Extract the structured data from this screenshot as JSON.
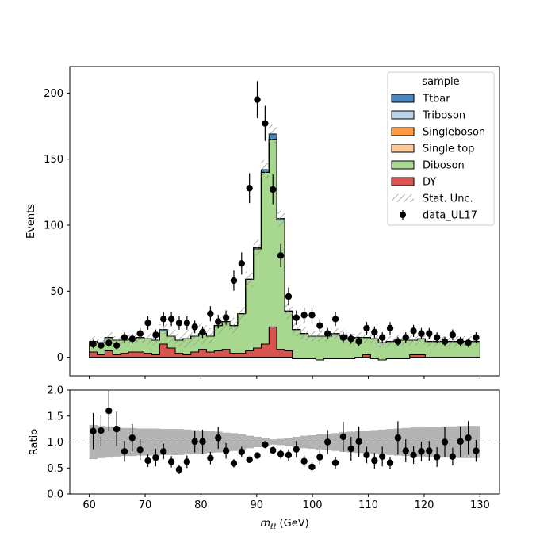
{
  "chart_data": [
    {
      "type": "area",
      "subtype": "stacked-step-histogram",
      "xlim": [
        56.5,
        133.5
      ],
      "ylim": [
        -14,
        220
      ],
      "ylabel": "Events",
      "yticks": [
        0,
        50,
        100,
        150,
        200
      ],
      "bin_edges": [
        60,
        61.4,
        62.8,
        64.2,
        65.6,
        67.0,
        68.4,
        69.8,
        71.2,
        72.6,
        74.0,
        75.4,
        76.8,
        78.2,
        79.6,
        81.0,
        82.4,
        83.8,
        85.2,
        86.6,
        88.0,
        89.4,
        90.8,
        92.2,
        93.6,
        95.0,
        96.4,
        97.8,
        99.2,
        100.6,
        102.0,
        103.4,
        104.8,
        106.2,
        107.6,
        109.0,
        110.4,
        111.8,
        113.2,
        114.6,
        116.0,
        117.4,
        118.8,
        120.2,
        121.6,
        123.0,
        124.4,
        125.8,
        127.2,
        128.6,
        130.0
      ],
      "series": [
        {
          "name": "DY",
          "color": "#d9534f",
          "values": [
            4,
            2,
            5,
            2,
            3,
            4,
            4,
            3,
            2,
            10,
            7,
            3,
            2,
            4,
            6,
            4,
            5,
            6,
            3,
            3,
            5,
            7,
            10,
            23,
            6,
            5,
            -1,
            -1,
            -1,
            -2,
            -1,
            -1,
            -1,
            -1,
            0,
            2,
            -1,
            -2,
            -1,
            -1,
            -1,
            2,
            2,
            0,
            0,
            0,
            0,
            0,
            0,
            0
          ]
        },
        {
          "name": "Diboson",
          "color": "#a8d890",
          "values": [
            8,
            9,
            10,
            11,
            10,
            10,
            11,
            11,
            11,
            10,
            9,
            10,
            12,
            12,
            12,
            12,
            19,
            21,
            21,
            30,
            54,
            75,
            130,
            142,
            98,
            30,
            22,
            19,
            17,
            18,
            17,
            18,
            17,
            15,
            15,
            13,
            15,
            13,
            13,
            14,
            14,
            11,
            12,
            12,
            12,
            12,
            12,
            12,
            12,
            12
          ]
        },
        {
          "name": "Single top",
          "color": "#ffc99a",
          "values": [
            0,
            0,
            0,
            0,
            0,
            0,
            0,
            0,
            0,
            0,
            0,
            0,
            0,
            0,
            0,
            0,
            0,
            0,
            0,
            0,
            0,
            0,
            0,
            0,
            0,
            0,
            0,
            0,
            0,
            0,
            0,
            0,
            0,
            0,
            0,
            0,
            0,
            0,
            0,
            0,
            0,
            0,
            0,
            0,
            0,
            0,
            0,
            0,
            0,
            0
          ]
        },
        {
          "name": "Singleboson",
          "color": "#ff9a40",
          "values": [
            0,
            0,
            0,
            0,
            0,
            0,
            0,
            0,
            0,
            0,
            0,
            0,
            0,
            0,
            0,
            0,
            0,
            0,
            0,
            0,
            0,
            0,
            0,
            0,
            0,
            0,
            0,
            0,
            0,
            0,
            0,
            0,
            0,
            0,
            0,
            0,
            0,
            0,
            0,
            0,
            0,
            0,
            0,
            0,
            0,
            0,
            0,
            0,
            0,
            0
          ]
        },
        {
          "name": "Triboson",
          "color": "#bcd2ea",
          "values": [
            0,
            0,
            0,
            0,
            0,
            0,
            0,
            0,
            0,
            0,
            0,
            0,
            0,
            0,
            0,
            0,
            0,
            0,
            0,
            0,
            0,
            0,
            0,
            0,
            0,
            0,
            0,
            0,
            0,
            0,
            0,
            0,
            0,
            0,
            0,
            0,
            0,
            0,
            0,
            0,
            0,
            0,
            0,
            0,
            0,
            0,
            0,
            0,
            0,
            0
          ]
        },
        {
          "name": "Ttbar",
          "color": "#4a86c0",
          "values": [
            0,
            0,
            0,
            0,
            0,
            0,
            0,
            0,
            0,
            1,
            0,
            0,
            0,
            0,
            0,
            0,
            0,
            0,
            0,
            0,
            0,
            1,
            2,
            4,
            1,
            0,
            0,
            0,
            0,
            0,
            0,
            1,
            1,
            0,
            0,
            0,
            0,
            0,
            0,
            0,
            0,
            0,
            0,
            0,
            0,
            0,
            0,
            0,
            0,
            0
          ]
        }
      ],
      "stat_unc": [
        4,
        3,
        4,
        3,
        3,
        3,
        4,
        4,
        4,
        4,
        5,
        5,
        7,
        7,
        8,
        6,
        6,
        6,
        6,
        5,
        6,
        6,
        7,
        7,
        6,
        6,
        5,
        5,
        4,
        4,
        4,
        4,
        4,
        4,
        4,
        4,
        4,
        4,
        4,
        4,
        4,
        4,
        4,
        4,
        4,
        4,
        4,
        4,
        4,
        4
      ],
      "data": {
        "name": "data_UL17",
        "x": [
          60.7,
          62.1,
          63.5,
          64.9,
          66.3,
          67.7,
          69.1,
          70.5,
          71.9,
          73.3,
          74.7,
          76.1,
          77.5,
          78.9,
          80.3,
          81.7,
          83.1,
          84.5,
          85.9,
          87.3,
          88.7,
          90.1,
          91.5,
          92.9,
          94.3,
          95.7,
          97.1,
          98.5,
          99.9,
          101.3,
          102.7,
          104.1,
          105.5,
          106.9,
          108.3,
          109.7,
          111.1,
          112.5,
          113.9,
          115.3,
          116.7,
          118.1,
          119.5,
          120.9,
          122.3,
          123.7,
          125.1,
          126.5,
          127.9,
          129.3
        ],
        "y": [
          10,
          9,
          11,
          9,
          15,
          14,
          18,
          26,
          17,
          29,
          29,
          26,
          26,
          23,
          19,
          33,
          27,
          30,
          58,
          71,
          128,
          195,
          177,
          127,
          77,
          46,
          30,
          32,
          32,
          24,
          18,
          29,
          15,
          14,
          12,
          22,
          19,
          15,
          22,
          12,
          15,
          20,
          18,
          18,
          15,
          12,
          17,
          12,
          11,
          15
        ],
        "err": [
          3.2,
          3,
          3.3,
          3,
          3.9,
          3.7,
          4.2,
          5.1,
          4.1,
          5.4,
          5.4,
          5.1,
          5.1,
          4.8,
          4.4,
          5.7,
          5.2,
          5.5,
          7.6,
          8.4,
          11.3,
          14,
          13.3,
          11.3,
          8.8,
          6.8,
          5.5,
          5.7,
          5.7,
          4.9,
          4.2,
          5.4,
          3.9,
          3.7,
          3.5,
          4.7,
          4.4,
          3.9,
          4.7,
          3.5,
          3.9,
          4.5,
          4.2,
          4.2,
          3.9,
          3.5,
          4.1,
          3.5,
          3.3,
          3.9
        ]
      },
      "legend": {
        "title": "sample",
        "position": "upper right",
        "entries": [
          "Ttbar",
          "Triboson",
          "Singleboson",
          "Single top",
          "Diboson",
          "DY",
          "Stat. Unc.",
          "data_UL17"
        ]
      },
      "grid": false
    },
    {
      "type": "scatter",
      "subtype": "ratio",
      "xlim": [
        56.5,
        133.5
      ],
      "ylim": [
        0,
        2
      ],
      "xlabel_var": "m",
      "xlabel_sub": "ℓℓ",
      "xlabel_unit": " (GeV)",
      "ylabel": "Ratio",
      "xticks": [
        60,
        70,
        80,
        90,
        100,
        110,
        120,
        130
      ],
      "yticks": [
        "0.0",
        "0.5",
        "1.0",
        "1.5",
        "2.0"
      ],
      "reference_line": 1.0,
      "band_halfwidth": [
        0.33,
        0.31,
        0.3,
        0.28,
        0.27,
        0.27,
        0.26,
        0.26,
        0.26,
        0.25,
        0.25,
        0.25,
        0.24,
        0.23,
        0.22,
        0.21,
        0.2,
        0.18,
        0.17,
        0.15,
        0.12,
        0.1,
        0.07,
        0.05,
        0.06,
        0.08,
        0.1,
        0.12,
        0.13,
        0.15,
        0.16,
        0.17,
        0.19,
        0.2,
        0.21,
        0.22,
        0.23,
        0.24,
        0.25,
        0.26,
        0.27,
        0.28,
        0.28,
        0.29,
        0.29,
        0.3,
        0.3,
        0.31,
        0.31,
        0.31
      ],
      "ratio": {
        "y": [
          1.21,
          1.22,
          1.6,
          1.25,
          0.82,
          1.08,
          0.85,
          0.64,
          0.7,
          0.82,
          0.62,
          0.47,
          0.62,
          1.01,
          1.01,
          0.69,
          1.08,
          0.83,
          0.59,
          0.81,
          0.66,
          0.74,
          0.95,
          0.84,
          0.77,
          0.75,
          0.86,
          0.63,
          0.52,
          0.71,
          1.0,
          0.6,
          1.1,
          0.87,
          1.01,
          0.75,
          0.64,
          0.72,
          0.6,
          1.08,
          0.83,
          0.75,
          0.82,
          0.83,
          0.71,
          1.0,
          0.72,
          1.01,
          1.08,
          0.83
        ],
        "err": [
          0.35,
          0.3,
          0.39,
          0.33,
          0.2,
          0.26,
          0.2,
          0.12,
          0.17,
          0.15,
          0.11,
          0.09,
          0.12,
          0.21,
          0.23,
          0.12,
          0.21,
          0.15,
          0.08,
          0.1,
          0.06,
          0.05,
          0.07,
          0.07,
          0.09,
          0.11,
          0.16,
          0.11,
          0.09,
          0.14,
          0.23,
          0.11,
          0.29,
          0.23,
          0.29,
          0.16,
          0.15,
          0.19,
          0.12,
          0.32,
          0.22,
          0.17,
          0.19,
          0.19,
          0.19,
          0.29,
          0.17,
          0.29,
          0.32,
          0.21
        ]
      },
      "grid": false
    }
  ]
}
